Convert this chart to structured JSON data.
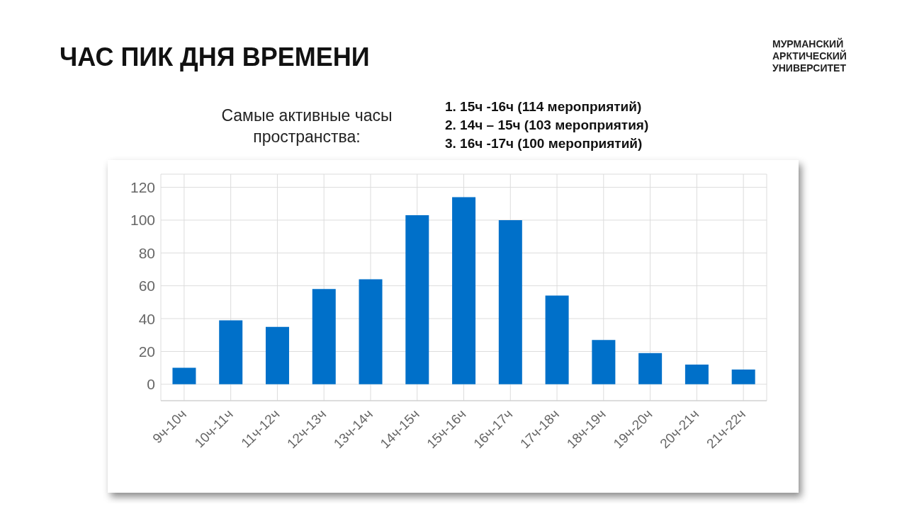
{
  "chart_data": {
    "type": "bar",
    "title": "ЧАС ПИК ДНЯ ВРЕМЕНИ",
    "subtitle": "Самые активные часы пространства:",
    "annotations": [
      "1.   15ч -16ч (114 мероприятий)",
      "2.   14ч – 15ч (103 мероприятия)",
      "3.   16ч -17ч  (100 мероприятий)",
      "МУРМАНСКИЙ АРКТИЧЕСКИЙ УНИВЕРСИТЕТ"
    ],
    "categories": [
      "9ч-10ч",
      "10ч-11ч",
      "11ч-12ч",
      "12ч-13ч",
      "13ч-14ч",
      "14ч-15ч",
      "15ч-16ч",
      "16ч-17ч",
      "17ч-18ч",
      "18ч-19ч",
      "19ч-20ч",
      "20ч-21ч",
      "21ч-22ч"
    ],
    "values": [
      10,
      39,
      35,
      58,
      64,
      103,
      114,
      100,
      54,
      27,
      19,
      12,
      9
    ],
    "color": "#0070c9",
    "ylim": [
      -10,
      128
    ],
    "yticks": [
      0,
      20,
      40,
      60,
      80,
      100,
      120
    ],
    "grid": true
  }
}
